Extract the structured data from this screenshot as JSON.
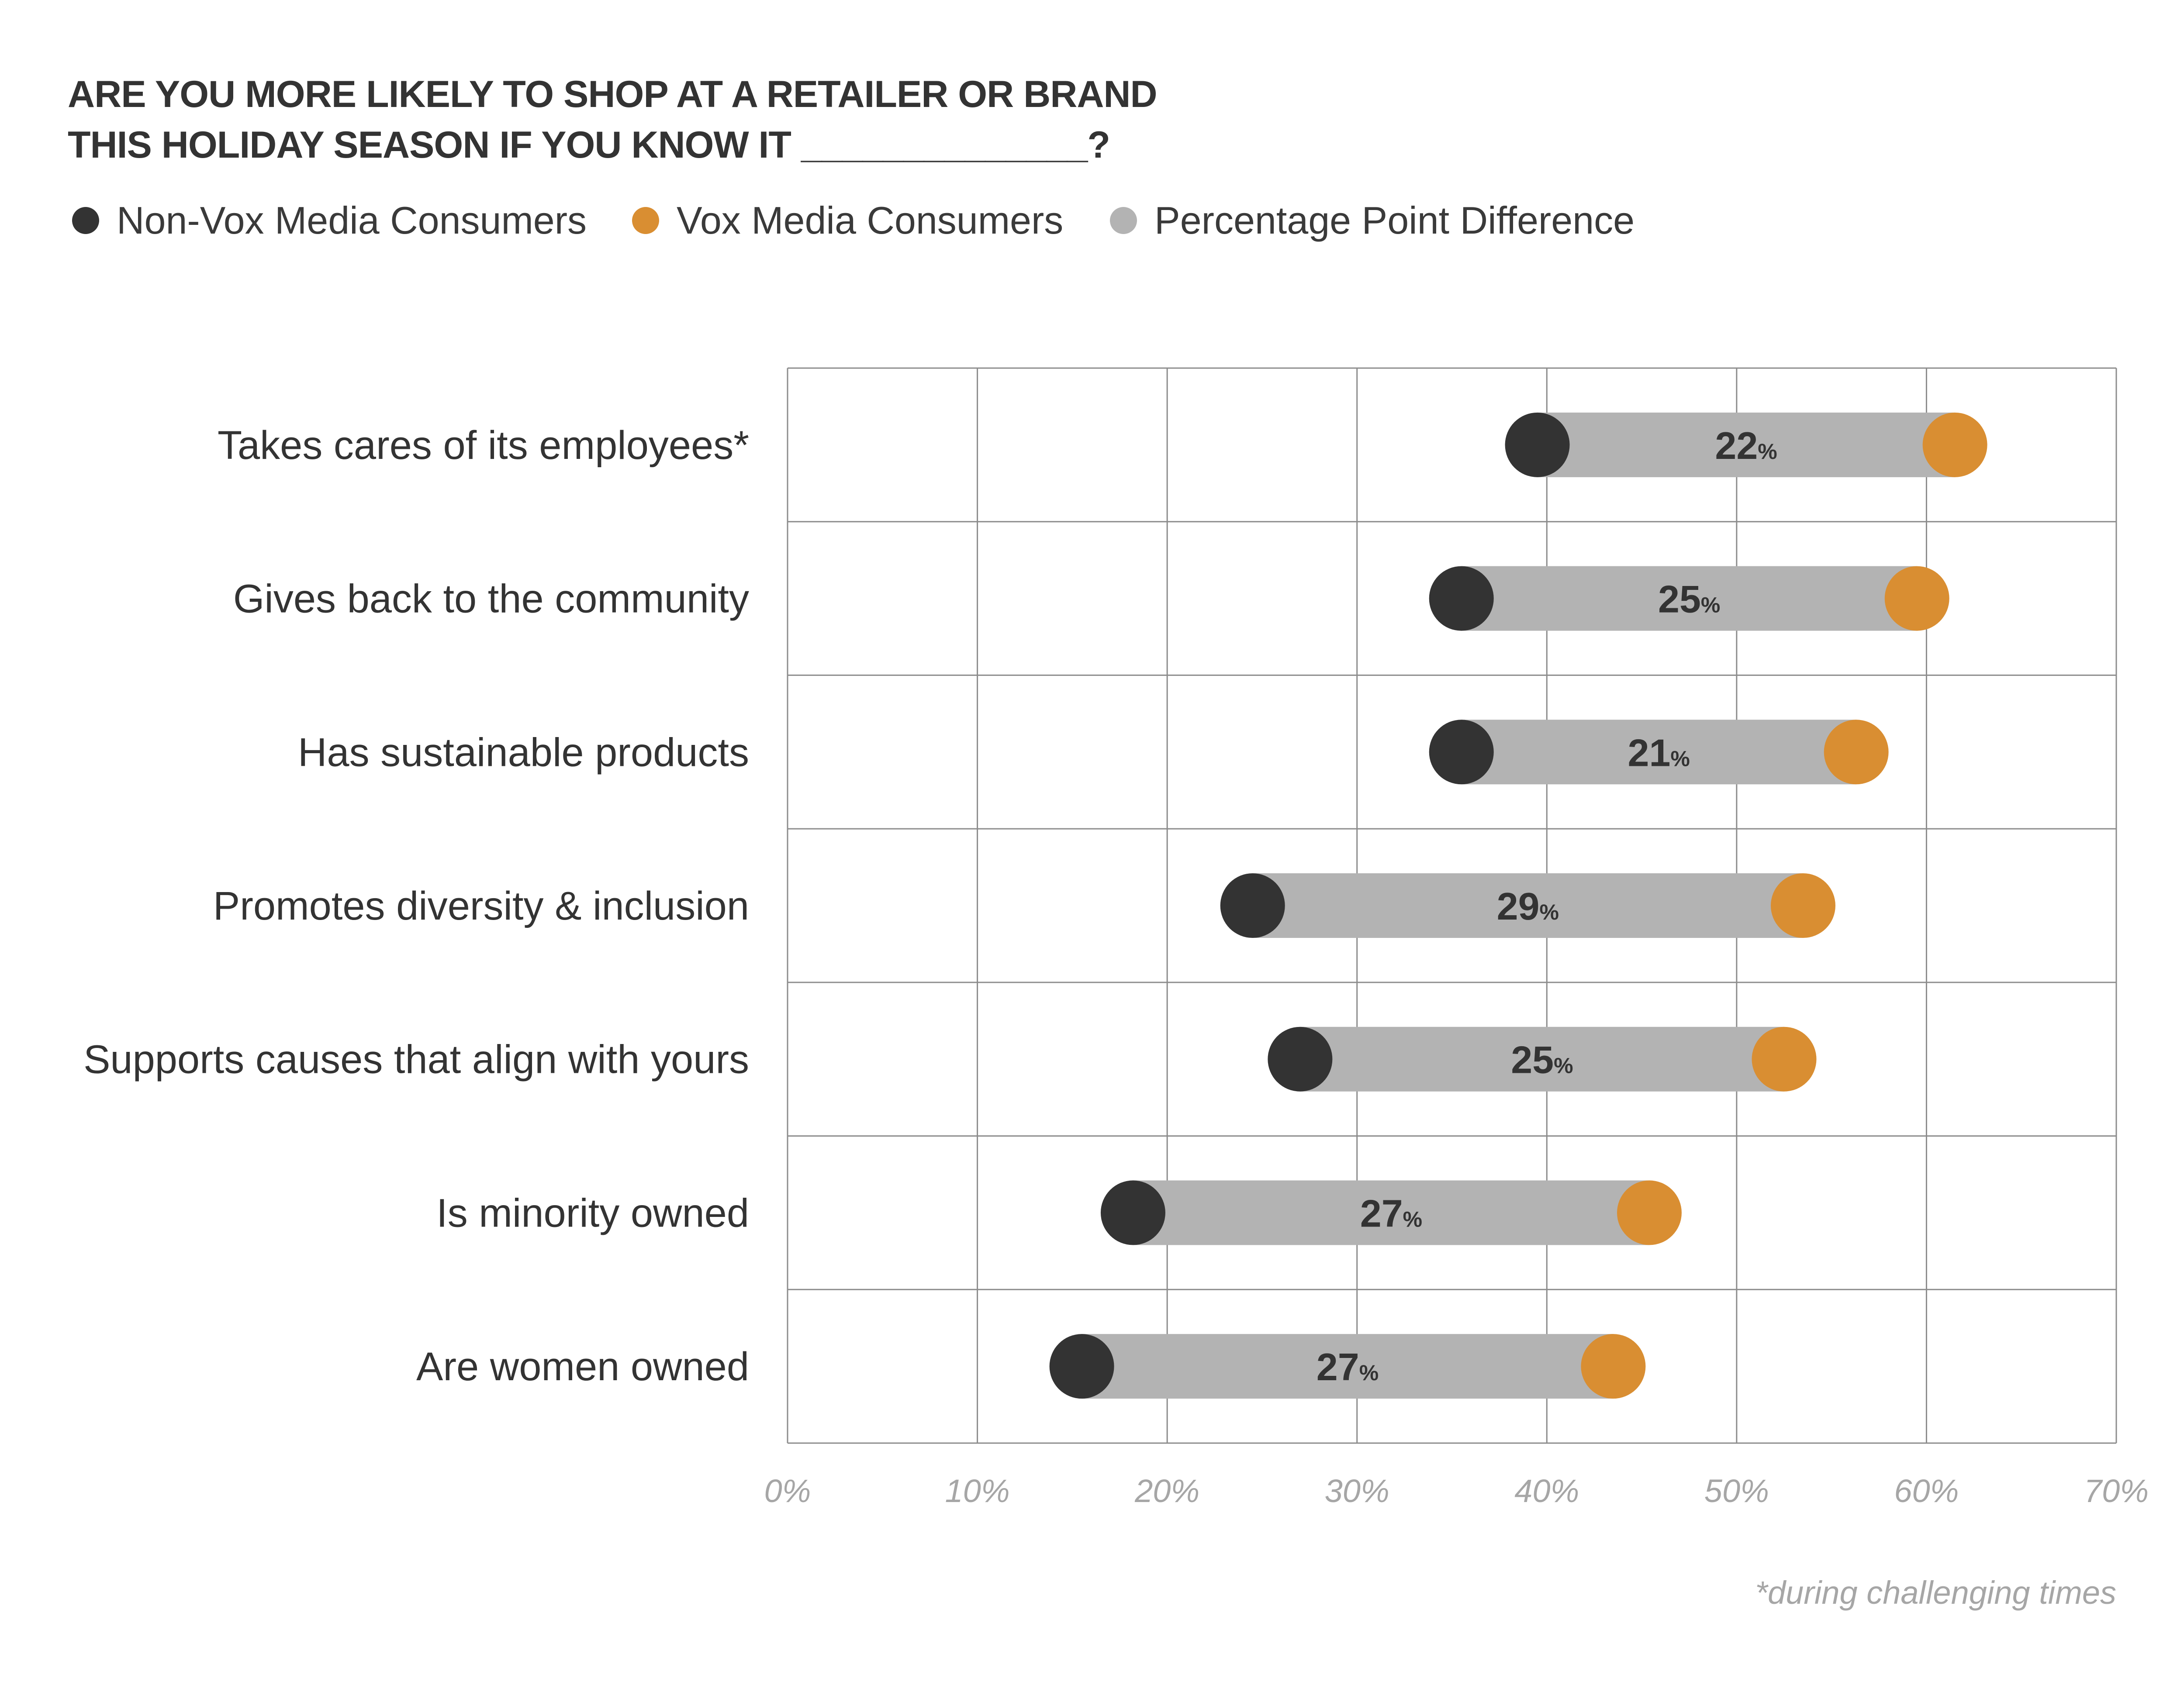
{
  "colors": {
    "non_vox": "#333333",
    "vox": "#d98e32",
    "difference": "#b3b3b3",
    "grid": "#8c8c8c",
    "tick_text": "#a6a6a6"
  },
  "chart_data": {
    "type": "dumbbell",
    "title": "ARE YOU MORE LIKELY TO SHOP AT A RETAILER OR BRAND THIS HOLIDAY SEASON IF YOU KNOW IT ______________?",
    "title_lines": [
      "ARE YOU MORE LIKELY TO SHOP AT A RETAILER OR BRAND",
      "THIS HOLIDAY SEASON IF YOU KNOW IT ______________?"
    ],
    "legend": [
      {
        "key": "non_vox",
        "label": "Non-Vox Media Consumers"
      },
      {
        "key": "vox",
        "label": "Vox Media Consumers"
      },
      {
        "key": "difference",
        "label": "Percentage Point Difference"
      }
    ],
    "categories": [
      "Takes cares of its employees*",
      "Gives back to the community",
      "Has sustainable products",
      "Promotes diversity & inclusion",
      "Supports causes that align with yours",
      "Is minority owned",
      "Are women owned"
    ],
    "series": [
      {
        "name": "Non-Vox Media Consumers",
        "values": [
          39.5,
          35.5,
          35.5,
          24.5,
          27.0,
          18.2,
          15.5
        ]
      },
      {
        "name": "Vox Media Consumers",
        "values": [
          61.5,
          59.5,
          56.3,
          53.5,
          52.5,
          45.4,
          43.5
        ]
      }
    ],
    "differences": [
      "22",
      "25",
      "21",
      "29",
      "25",
      "27",
      "27"
    ],
    "difference_unit": "%",
    "xlim": [
      0,
      70
    ],
    "xticks": [
      "0%",
      "10%",
      "20%",
      "30%",
      "40%",
      "50%",
      "60%",
      "70%"
    ],
    "xlabel": "",
    "ylabel": "",
    "grid": true,
    "legend_position": "top-left",
    "footnote": "*during challenging times"
  }
}
